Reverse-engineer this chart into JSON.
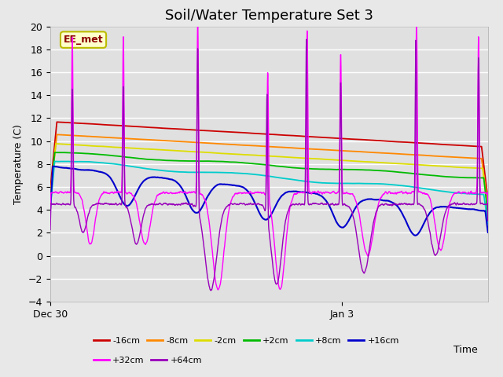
{
  "title": "Soil/Water Temperature Set 3",
  "xlabel": "Time",
  "ylabel": "Temperature (C)",
  "ylim": [
    -4,
    20
  ],
  "yticks": [
    -4,
    -2,
    0,
    2,
    4,
    6,
    8,
    10,
    12,
    14,
    16,
    18,
    20
  ],
  "xlim_start": 0,
  "xlim_end": 6.0,
  "xtick_positions": [
    0,
    4.0
  ],
  "xtick_labels": [
    "Dec 30",
    "Jan 3"
  ],
  "annotation_text": "EE_met",
  "colors": {
    "-16cm": "#cc0000",
    "-8cm": "#ff8800",
    "-2cm": "#dddd00",
    "+2cm": "#00bb00",
    "+8cm": "#00cccc",
    "+16cm": "#0000cc",
    "+32cm": "#ff00ff",
    "+64cm": "#9900bb"
  },
  "legend_labels": [
    "-16cm",
    "-8cm",
    "-2cm",
    "+2cm",
    "+8cm",
    "+16cm",
    "+32cm",
    "+64cm"
  ],
  "fig_facecolor": "#e8e8e8",
  "plot_facecolor": "#e0e0e0",
  "title_fontsize": 13,
  "label_fontsize": 9,
  "tick_fontsize": 9
}
